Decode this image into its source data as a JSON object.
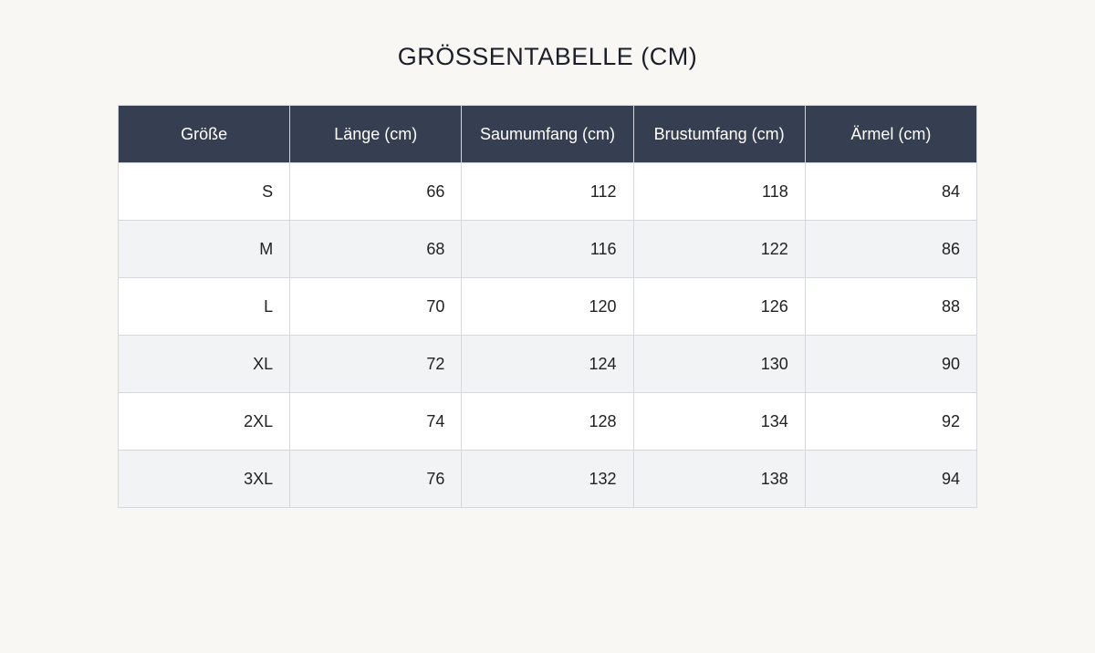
{
  "title": "GRÖSSENTABELLE (CM)",
  "table": {
    "headers": [
      "Größe",
      "Länge (cm)",
      "Saumumfang (cm)",
      "Brustumfang (cm)",
      "Ärmel (cm)"
    ],
    "rows": [
      [
        "S",
        "66",
        "112",
        "118",
        "84"
      ],
      [
        "M",
        "68",
        "116",
        "122",
        "86"
      ],
      [
        "L",
        "70",
        "120",
        "126",
        "88"
      ],
      [
        "XL",
        "72",
        "124",
        "130",
        "90"
      ],
      [
        "2XL",
        "74",
        "128",
        "134",
        "92"
      ],
      [
        "3XL",
        "76",
        "132",
        "138",
        "94"
      ]
    ]
  },
  "colors": {
    "background": "#f8f7f3",
    "header_bg": "#363f51",
    "header_text": "#ffffff",
    "row_alt_bg": "#f2f3f5",
    "border": "#d4d7dc"
  }
}
